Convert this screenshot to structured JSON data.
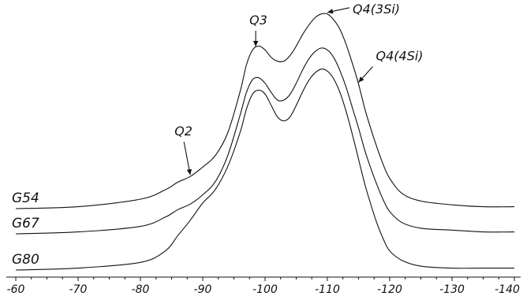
{
  "chart_data": {
    "type": "line",
    "title": "",
    "xlabel": "",
    "ylabel": "",
    "xlim": [
      -60,
      -140
    ],
    "x_ticks": [
      "-60",
      "-70",
      "-80",
      "-90",
      "-100",
      "-110",
      "-120",
      "-130",
      "-140"
    ],
    "grid": false,
    "series": [
      {
        "name": "G54",
        "x": [
          -60,
          -70,
          -80,
          -84,
          -86,
          -88,
          -90,
          -92,
          -94,
          -96,
          -97,
          -98,
          -99,
          -100,
          -101,
          -102,
          -103,
          -104,
          -105,
          -106,
          -107,
          -108,
          -109,
          -110,
          -111,
          -112,
          -113,
          -114,
          -115,
          -116,
          -117,
          -118,
          -119,
          -120,
          -122,
          -125,
          -130,
          -135,
          -140
        ],
        "y": [
          0.0,
          0.01,
          0.05,
          0.1,
          0.14,
          0.17,
          0.22,
          0.28,
          0.4,
          0.62,
          0.76,
          0.84,
          0.86,
          0.84,
          0.8,
          0.78,
          0.78,
          0.81,
          0.86,
          0.92,
          0.97,
          1.01,
          1.03,
          1.03,
          1.0,
          0.95,
          0.87,
          0.77,
          0.66,
          0.53,
          0.42,
          0.32,
          0.23,
          0.16,
          0.08,
          0.04,
          0.02,
          0.01,
          0.01
        ]
      },
      {
        "name": "G67",
        "x": [
          -60,
          -70,
          -80,
          -84,
          -86,
          -88,
          -90,
          -92,
          -94,
          -96,
          -97,
          -98,
          -99,
          -100,
          -101,
          -102,
          -103,
          -104,
          -105,
          -106,
          -107,
          -108,
          -109,
          -110,
          -111,
          -112,
          -113,
          -114,
          -115,
          -116,
          -117,
          -118,
          -119,
          -120,
          -122,
          -125,
          -130,
          -135,
          -140
        ],
        "y": [
          0.0,
          0.01,
          0.04,
          0.09,
          0.13,
          0.16,
          0.21,
          0.28,
          0.42,
          0.64,
          0.76,
          0.83,
          0.84,
          0.81,
          0.76,
          0.72,
          0.72,
          0.75,
          0.81,
          0.88,
          0.94,
          0.98,
          1.0,
          0.99,
          0.95,
          0.88,
          0.79,
          0.68,
          0.57,
          0.45,
          0.35,
          0.26,
          0.18,
          0.12,
          0.06,
          0.03,
          0.02,
          0.01,
          0.01
        ]
      },
      {
        "name": "G80",
        "x": [
          -60,
          -70,
          -80,
          -84,
          -86,
          -88,
          -90,
          -92,
          -94,
          -96,
          -97,
          -98,
          -99,
          -100,
          -101,
          -102,
          -103,
          -104,
          -105,
          -106,
          -107,
          -108,
          -109,
          -110,
          -111,
          -112,
          -113,
          -114,
          -115,
          -116,
          -117,
          -118,
          -119,
          -120,
          -122,
          -125,
          -130,
          -135,
          -140
        ],
        "y": [
          0.0,
          0.01,
          0.04,
          0.1,
          0.18,
          0.26,
          0.35,
          0.42,
          0.54,
          0.72,
          0.84,
          0.92,
          0.94,
          0.92,
          0.86,
          0.8,
          0.78,
          0.8,
          0.86,
          0.93,
          0.99,
          1.03,
          1.05,
          1.04,
          1.0,
          0.93,
          0.83,
          0.71,
          0.58,
          0.45,
          0.34,
          0.24,
          0.16,
          0.1,
          0.05,
          0.02,
          0.01,
          0.01,
          0.01
        ]
      }
    ],
    "annotations": [
      {
        "label": "Q2",
        "x": -88
      },
      {
        "label": "Q3",
        "x": -98.5
      },
      {
        "label": "Q4(3Si)",
        "x": -110
      },
      {
        "label": "Q4(4Si)",
        "x": -115
      }
    ]
  }
}
